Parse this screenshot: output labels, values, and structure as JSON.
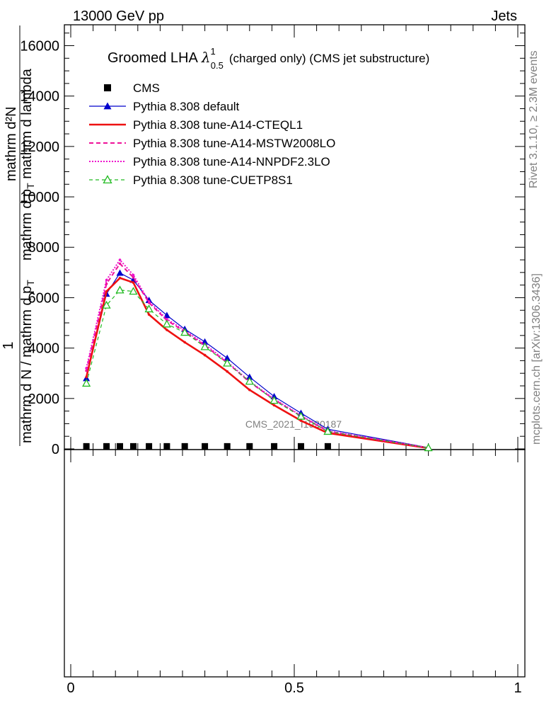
{
  "header": {
    "left": "13000 GeV pp",
    "right": "Jets"
  },
  "side_labels": {
    "rivet": "Rivet 3.1.10, ≥ 2.3M events",
    "mcplots": "mcplots.cern.ch [arXiv:1306.3436]"
  },
  "watermark": "CMS_2021_I1920187",
  "chart_data": {
    "type": "line",
    "title": {
      "main": "Groomed LHA",
      "symbol": "λ",
      "sup": "1",
      "sub": "0.5",
      "suffix": "(charged only) (CMS jet substructure)"
    },
    "ylabel": {
      "one": "1",
      "denominator": "mathrm d N / mathrm d p",
      "denominator_sub": "T",
      "numerator_top": "mathrm d²N",
      "numerator_bottom_a": "mathrm d p",
      "numerator_bottom_sub": "T",
      "numerator_bottom_b": " mathrm d lambda"
    },
    "x": [
      0.035,
      0.08,
      0.11,
      0.14,
      0.175,
      0.215,
      0.255,
      0.3,
      0.35,
      0.4,
      0.455,
      0.515,
      0.575,
      0.8
    ],
    "xlim": [
      0,
      1
    ],
    "ylim": [
      0,
      16800
    ],
    "yticks": [
      0,
      2000,
      4000,
      6000,
      8000,
      10000,
      12000,
      14000,
      16000
    ],
    "yticklabels": [
      "0",
      "2000",
      "4000",
      "6000",
      "8000",
      "10000",
      "12000",
      "14000",
      "16000"
    ],
    "xticks": [
      0,
      0.5,
      1
    ],
    "xticklabels": [
      "0",
      "0.5",
      "1"
    ],
    "series": [
      {
        "name": "CMS",
        "color": "#000000",
        "style": "marker-square",
        "values": [
          60,
          60,
          60,
          60,
          60,
          60,
          60,
          60,
          60,
          60,
          60,
          60,
          60,
          null
        ]
      },
      {
        "name": "Pythia 8.308 default",
        "color": "#0000cc",
        "style": "solid-thin-triangle",
        "values": [
          2800,
          6150,
          6980,
          6700,
          5900,
          5300,
          4750,
          4250,
          3600,
          2850,
          2080,
          1420,
          780,
          50
        ]
      },
      {
        "name": "Pythia 8.308 tune-A14-CTEQL1",
        "color": "#ee1111",
        "style": "solid-thick",
        "values": [
          2850,
          6250,
          6780,
          6600,
          5330,
          4720,
          4230,
          3720,
          3070,
          2340,
          1730,
          1120,
          630,
          30
        ]
      },
      {
        "name": "Pythia 8.308 tune-A14-MSTW2008LO",
        "color": "#ee1199",
        "style": "dashed",
        "values": [
          3100,
          6550,
          7350,
          6800,
          5800,
          5100,
          4650,
          4100,
          3420,
          2650,
          1960,
          1300,
          700,
          40
        ]
      },
      {
        "name": "Pythia 8.308 tune-A14-NNPDF2.3LO",
        "color": "#ee11cc",
        "style": "dotted",
        "values": [
          3200,
          6700,
          7500,
          6900,
          5850,
          5150,
          4700,
          4150,
          3450,
          2680,
          1980,
          1320,
          710,
          40
        ]
      },
      {
        "name": "Pythia 8.308 tune-CUETP8S1",
        "color": "#22bb22",
        "style": "dashed-open-triangle",
        "values": [
          2600,
          5700,
          6300,
          6250,
          5550,
          4950,
          4620,
          4050,
          3400,
          2680,
          1920,
          1290,
          690,
          40
        ]
      }
    ]
  }
}
